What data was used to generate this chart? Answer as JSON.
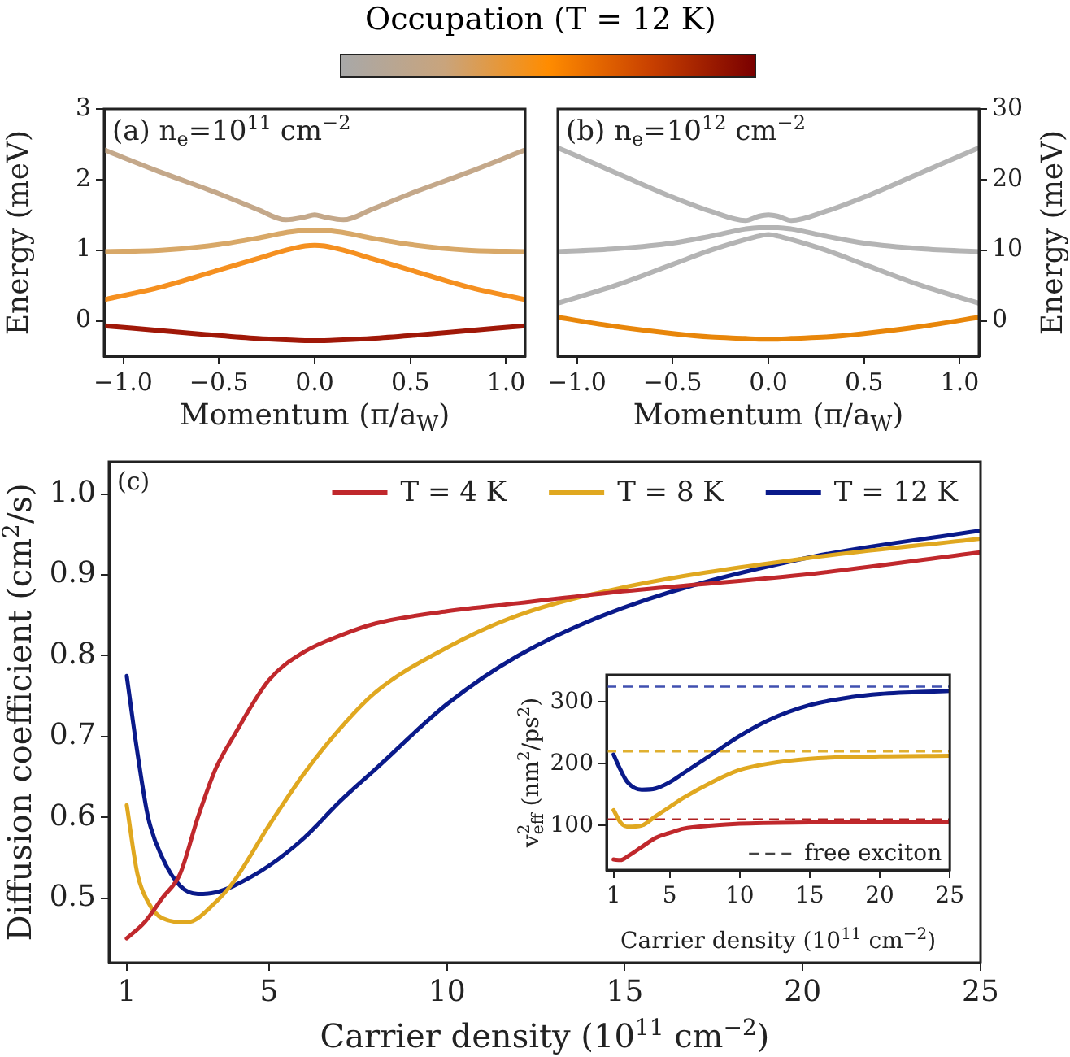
{
  "chart_data": [
    {
      "type": "line",
      "title": "(a) n$_{e}$=10$^{11}$ cm$^{−2}$",
      "clabel": "Occupation (T = 12 K)",
      "xlabel": "Momentum (π/a$_{W}$)",
      "ylabel": "Energy (meV)",
      "xlim": [
        -1.1,
        1.1
      ],
      "ylim": [
        -0.5,
        3
      ],
      "xticks": [
        {
          "value": -1,
          "label": "−1.0"
        },
        {
          "value": -0.5,
          "label": "−0.5"
        },
        {
          "value": 0,
          "label": "0.0"
        },
        {
          "value": 0.5,
          "label": "0.5"
        },
        {
          "value": 1,
          "label": "1.0"
        }
      ],
      "yticks": [
        0,
        1,
        2,
        3
      ],
      "grid": false,
      "x": [
        -1.1,
        -0.8,
        -0.5,
        -0.3,
        -0.15,
        -0.05,
        0,
        0.05,
        0.15,
        0.3,
        0.5,
        0.8,
        1.1
      ],
      "series": [
        {
          "color": "#c4a88a",
          "values": [
            2.42,
            2.1,
            1.8,
            1.58,
            1.43,
            1.47,
            1.5,
            1.47,
            1.43,
            1.58,
            1.8,
            2.1,
            2.42
          ]
        },
        {
          "color": "#d8a868",
          "values": [
            0.98,
            1.0,
            1.08,
            1.17,
            1.25,
            1.28,
            1.28,
            1.28,
            1.25,
            1.17,
            1.08,
            1.0,
            0.98
          ]
        },
        {
          "color": "#f59020",
          "values": [
            0.3,
            0.48,
            0.72,
            0.88,
            1.0,
            1.06,
            1.07,
            1.06,
            1.0,
            0.88,
            0.72,
            0.48,
            0.3
          ]
        },
        {
          "color": "#a01808",
          "values": [
            -0.07,
            -0.14,
            -0.21,
            -0.25,
            -0.27,
            -0.28,
            -0.28,
            -0.28,
            -0.27,
            -0.25,
            -0.21,
            -0.14,
            -0.07
          ]
        }
      ]
    },
    {
      "type": "line",
      "title": "(b) n$_{e}$=10$^{12}$ cm$^{−2}$",
      "xlabel": "Momentum (π/a$_{W}$)",
      "y2label": "Energy (meV)",
      "xlim": [
        -1.1,
        1.1
      ],
      "y2lim": [
        -5,
        30
      ],
      "xticks": [
        {
          "value": -1,
          "label": "−1.0"
        },
        {
          "value": -0.5,
          "label": "−0.5"
        },
        {
          "value": 0,
          "label": "0.0"
        },
        {
          "value": 0.5,
          "label": "0.5"
        },
        {
          "value": 1,
          "label": "1.0"
        }
      ],
      "y2ticks": [
        0,
        10,
        20,
        30
      ],
      "grid": false,
      "x": [
        -1.1,
        -0.8,
        -0.5,
        -0.3,
        -0.12,
        -0.05,
        0,
        0.05,
        0.12,
        0.3,
        0.5,
        0.8,
        1.1
      ],
      "series": [
        {
          "axis": "y2",
          "color": "#b4b4b4",
          "values": [
            24.5,
            21,
            17.5,
            15.5,
            14.2,
            14.8,
            15,
            14.8,
            14.2,
            15.5,
            17.5,
            21,
            24.5
          ]
        },
        {
          "axis": "y2",
          "color": "#b4b4b4",
          "values": [
            9.8,
            10.2,
            11,
            12,
            13,
            13.2,
            13.2,
            13.2,
            13,
            12,
            11,
            10.2,
            9.8
          ]
        },
        {
          "axis": "y2",
          "color": "#b4b4b4",
          "values": [
            2.5,
            5,
            8,
            10,
            11.5,
            12,
            12.2,
            12,
            11.5,
            10,
            8,
            5,
            2.5
          ]
        },
        {
          "axis": "y2",
          "color": "#e8860a",
          "values": [
            0.5,
            -0.8,
            -1.8,
            -2.3,
            -2.5,
            -2.6,
            -2.6,
            -2.6,
            -2.5,
            -2.3,
            -1.8,
            -0.8,
            0.5
          ]
        }
      ]
    },
    {
      "type": "line",
      "title": "(c)",
      "xlabel": "Carrier density (10$^{11}$ cm$^{−2}$)",
      "ylabel": "Diffusion coefficient (cm$^{2}$/s)",
      "xlim": [
        0.5,
        25
      ],
      "ylim": [
        0.42,
        1.04
      ],
      "xticks": [
        1,
        5,
        10,
        15,
        20,
        25
      ],
      "yticks": [
        {
          "value": 0.5,
          "label": "0.5"
        },
        {
          "value": 0.6,
          "label": "0.6"
        },
        {
          "value": 0.7,
          "label": "0.7"
        },
        {
          "value": 0.8,
          "label": "0.8"
        },
        {
          "value": 0.9,
          "label": "0.9"
        },
        {
          "value": 1,
          "label": "1.0"
        }
      ],
      "grid": false,
      "legend": "top right",
      "series": [
        {
          "name": "T = 4 K",
          "color": "#c0282c",
          "x": [
            1,
            1.5,
            2,
            2.5,
            3,
            3.5,
            4,
            5,
            6,
            7,
            8,
            10,
            12,
            15,
            20,
            25
          ],
          "values": [
            0.45,
            0.47,
            0.5,
            0.53,
            0.6,
            0.66,
            0.7,
            0.77,
            0.805,
            0.825,
            0.84,
            0.855,
            0.865,
            0.88,
            0.9,
            0.928
          ]
        },
        {
          "name": "T = 8 K",
          "color": "#e0a820",
          "x": [
            1,
            1.3,
            1.6,
            2,
            2.7,
            3.5,
            4,
            5,
            6,
            7,
            8,
            10,
            12,
            15,
            20,
            25
          ],
          "values": [
            0.615,
            0.53,
            0.495,
            0.475,
            0.47,
            0.495,
            0.52,
            0.59,
            0.655,
            0.71,
            0.755,
            0.81,
            0.85,
            0.885,
            0.92,
            0.945
          ]
        },
        {
          "name": "T = 12 K",
          "color": "#0a1a8a",
          "x": [
            1,
            1.3,
            1.6,
            2,
            2.5,
            3,
            3.5,
            4,
            5,
            6,
            7,
            8,
            10,
            12,
            15,
            20,
            25
          ],
          "values": [
            0.775,
            0.68,
            0.6,
            0.55,
            0.515,
            0.505,
            0.507,
            0.515,
            0.54,
            0.575,
            0.62,
            0.66,
            0.74,
            0.8,
            0.86,
            0.92,
            0.955
          ]
        }
      ]
    },
    {
      "type": "line",
      "xlabel": "Carrier density (10$^{11}$ cm$^{−2}$)",
      "ylabel": "v$^{2}$$_{eff}$ (nm$^{2}$/ps$^{2}$)",
      "xlim": [
        0.5,
        25
      ],
      "ylim": [
        28,
        344
      ],
      "xticks": [
        1,
        5,
        10,
        15,
        20,
        25
      ],
      "yticks": [
        100,
        200,
        300
      ],
      "grid": false,
      "annotations": [
        "free exciton"
      ],
      "ref_lines": [
        {
          "axis": "y",
          "value": 325,
          "color": "#4050b0",
          "line_style": "dashed"
        },
        {
          "axis": "y",
          "value": 220,
          "color": "#e0b030",
          "line_style": "dashed"
        },
        {
          "axis": "y",
          "value": 110,
          "color": "#b02020",
          "line_style": "dashed"
        }
      ],
      "series": [
        {
          "color": "#0a1a8a",
          "x": [
            1,
            1.5,
            2,
            3,
            4,
            5,
            6,
            8,
            10,
            12,
            15,
            18,
            20,
            25
          ],
          "values": [
            215,
            190,
            170,
            158,
            160,
            170,
            185,
            215,
            245,
            270,
            295,
            308,
            313,
            318
          ]
        },
        {
          "color": "#e0a820",
          "x": [
            1,
            1.5,
            2,
            3,
            4,
            5,
            6,
            8,
            10,
            12,
            15,
            20,
            25
          ],
          "values": [
            125,
            105,
            98,
            100,
            115,
            130,
            145,
            170,
            190,
            200,
            208,
            212,
            213
          ]
        },
        {
          "color": "#c0282c",
          "x": [
            1,
            1.5,
            2,
            3,
            4,
            5,
            6,
            8,
            10,
            15,
            25
          ],
          "values": [
            45,
            44,
            50,
            65,
            80,
            88,
            95,
            100,
            103,
            105,
            106
          ]
        }
      ]
    }
  ]
}
